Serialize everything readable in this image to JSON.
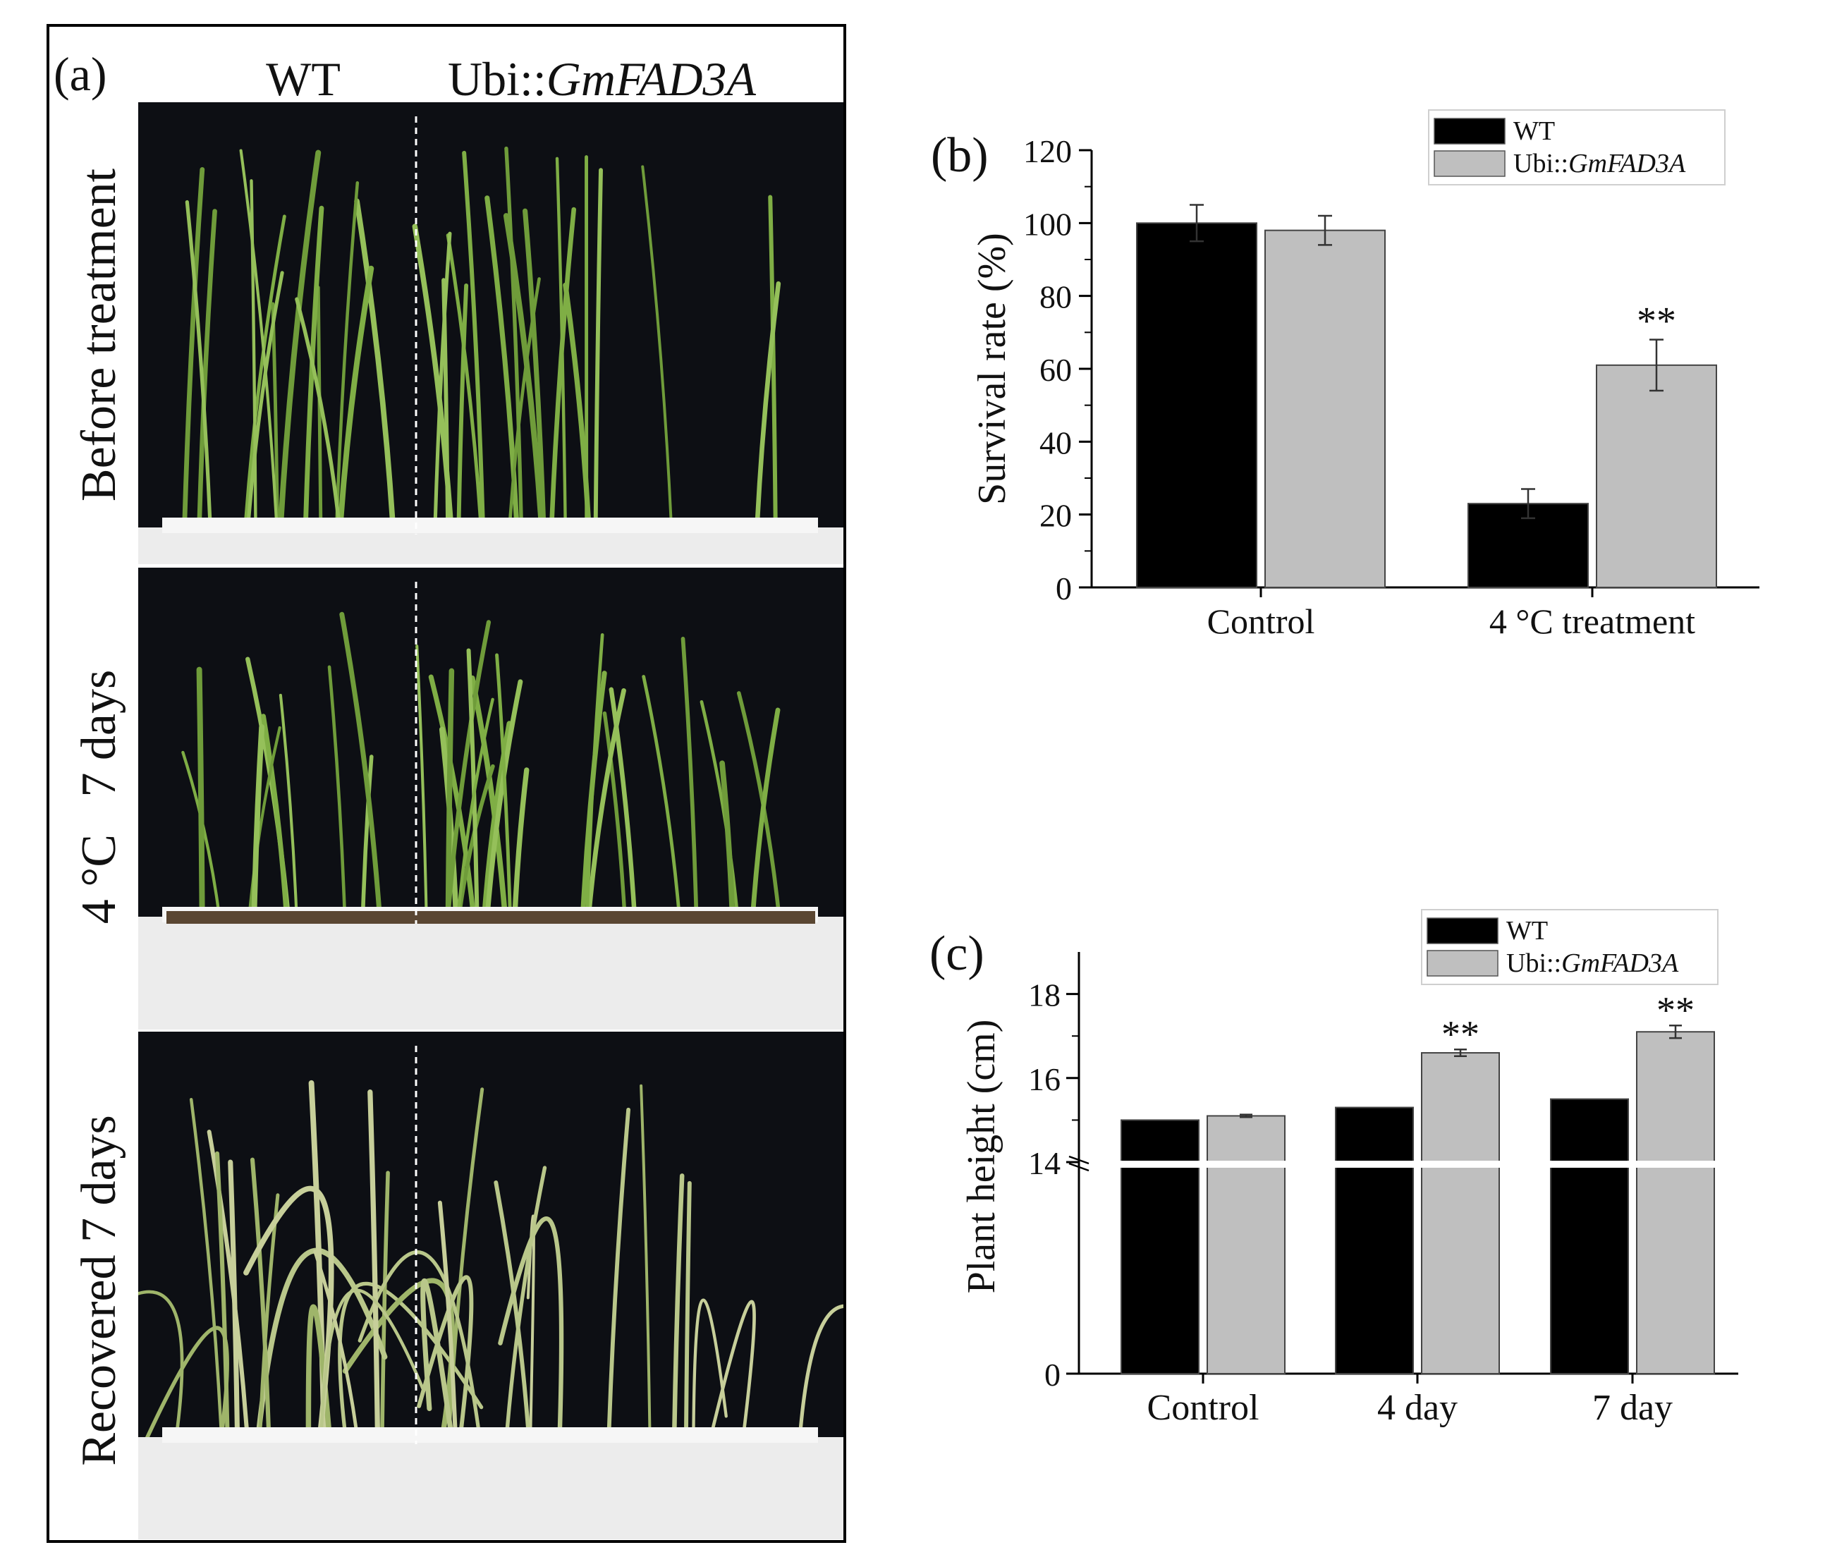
{
  "panel_a": {
    "label": "(a)",
    "col_wt": "WT",
    "col_tg_prefix": "Ubi::",
    "col_tg_gene": "GmFAD3A",
    "rows": [
      "Before treatment",
      "4 °C   7 days",
      "Recovered 7 days"
    ]
  },
  "colors": {
    "wt": "#000000",
    "tg": "#bfbfbf",
    "photo_bg": "#0d0f14",
    "leaf": "#7fae45",
    "tray": "#ececec"
  },
  "chart_data": [
    {
      "type": "bar",
      "panel_label": "(b)",
      "categories": [
        "Control",
        "4 °C treatment"
      ],
      "ylabel": "Survival  rate (%)",
      "xlabel": "",
      "ylim": [
        0,
        120
      ],
      "yticks": [
        0,
        20,
        40,
        60,
        80,
        100,
        120
      ],
      "legend": [
        "WT",
        "Ubi::GmFAD3A"
      ],
      "legend_position": "top-right",
      "series": [
        {
          "name": "WT",
          "values": [
            100,
            23
          ],
          "errors": [
            5,
            4
          ]
        },
        {
          "name": "Ubi::GmFAD3A",
          "values": [
            98,
            61
          ],
          "errors": [
            4,
            7
          ]
        }
      ],
      "annotations": [
        {
          "text": "**",
          "category": "4 °C treatment",
          "series": "Ubi::GmFAD3A"
        }
      ]
    },
    {
      "type": "bar",
      "panel_label": "(c)",
      "categories": [
        "Control",
        "4 day",
        "7 day"
      ],
      "ylabel": "Plant height (cm)",
      "xlabel": "",
      "axis_break": [
        0,
        14
      ],
      "ylim": [
        14,
        19
      ],
      "yticks": [
        0,
        14,
        16,
        18
      ],
      "legend": [
        "WT",
        "Ubi::GmFAD3A"
      ],
      "legend_position": "top-right",
      "series": [
        {
          "name": "WT",
          "values": [
            15.0,
            15.3,
            15.5
          ],
          "errors": [
            0,
            0,
            0
          ]
        },
        {
          "name": "Ubi::GmFAD3A",
          "values": [
            15.1,
            16.6,
            17.1
          ],
          "errors": [
            0.03,
            0.08,
            0.15
          ]
        }
      ],
      "annotations": [
        {
          "text": "**",
          "category": "4 day",
          "series": "Ubi::GmFAD3A"
        },
        {
          "text": "**",
          "category": "7 day",
          "series": "Ubi::GmFAD3A"
        }
      ]
    }
  ]
}
